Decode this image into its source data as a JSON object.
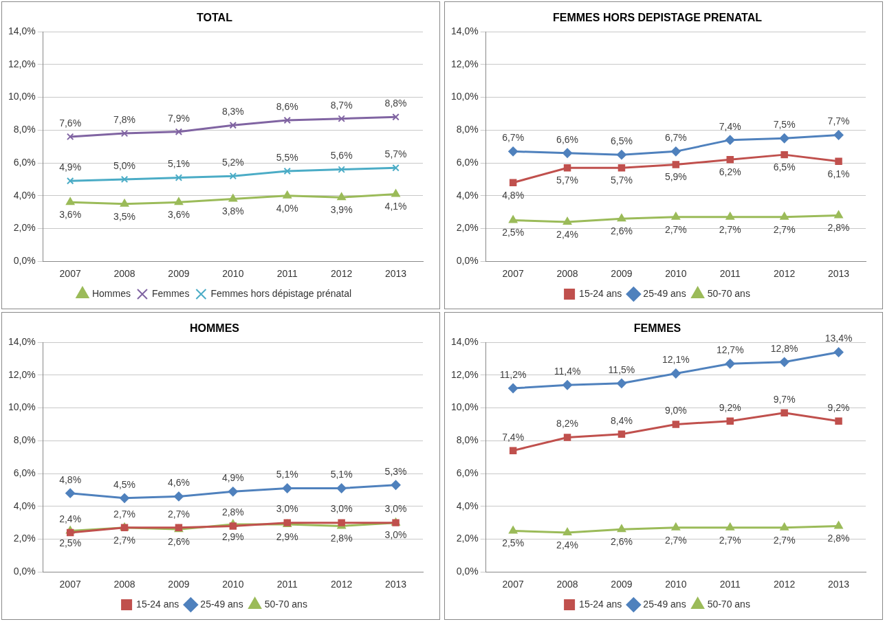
{
  "chart_data": [
    {
      "type": "line",
      "title": "TOTAL",
      "categories": [
        "2007",
        "2008",
        "2009",
        "2010",
        "2011",
        "2012",
        "2013"
      ],
      "ylim": [
        0,
        14
      ],
      "yticks": [
        {
          "value": 0,
          "label": "0,0%"
        },
        {
          "value": 2,
          "label": "2,0%"
        },
        {
          "value": 4,
          "label": "4,0%"
        },
        {
          "value": 6,
          "label": "6,0%"
        },
        {
          "value": 8,
          "label": "8,0%"
        },
        {
          "value": 10,
          "label": "10,0%"
        },
        {
          "value": 12,
          "label": "12,0%"
        },
        {
          "value": 14,
          "label": "14,0%"
        }
      ],
      "grid": "y",
      "legend": "bottom",
      "series": [
        {
          "name": "Hommes",
          "color": "#9bbb59",
          "marker": "triangle",
          "values": [
            3.6,
            3.5,
            3.6,
            3.8,
            4.0,
            3.9,
            4.1
          ],
          "value_labels": [
            "3,6%",
            "3,5%",
            "3,6%",
            "3,8%",
            "4,0%",
            "3,9%",
            "4,1%"
          ]
        },
        {
          "name": "Femmes",
          "color": "#8064a2",
          "marker": "cross",
          "values": [
            7.6,
            7.8,
            7.9,
            8.3,
            8.6,
            8.7,
            8.8
          ],
          "value_labels": [
            "7,6%",
            "7,8%",
            "7,9%",
            "8,3%",
            "8,6%",
            "8,7%",
            "8,8%"
          ]
        },
        {
          "name": "Femmes hors dépistage prénatal",
          "color": "#4bacc6",
          "marker": "cross",
          "values": [
            4.9,
            5.0,
            5.1,
            5.2,
            5.5,
            5.6,
            5.7
          ],
          "value_labels": [
            "4,9%",
            "5,0%",
            "5,1%",
            "5,2%",
            "5,5%",
            "5,6%",
            "5,7%"
          ]
        }
      ]
    },
    {
      "type": "line",
      "title": "FEMMES HORS DEPISTAGE PRENATAL",
      "categories": [
        "2007",
        "2008",
        "2009",
        "2010",
        "2011",
        "2012",
        "2013"
      ],
      "ylim": [
        0,
        14
      ],
      "yticks": [
        {
          "value": 0,
          "label": "0,0%"
        },
        {
          "value": 2,
          "label": "2,0%"
        },
        {
          "value": 4,
          "label": "4,0%"
        },
        {
          "value": 6,
          "label": "6,0%"
        },
        {
          "value": 8,
          "label": "8,0%"
        },
        {
          "value": 10,
          "label": "10,0%"
        },
        {
          "value": 12,
          "label": "12,0%"
        },
        {
          "value": 14,
          "label": "14,0%"
        }
      ],
      "grid": "y",
      "legend": "bottom",
      "series": [
        {
          "name": "15-24 ans",
          "color": "#c0504d",
          "marker": "square",
          "values": [
            4.8,
            5.7,
            5.7,
            5.9,
            6.2,
            6.5,
            6.1
          ],
          "value_labels": [
            "4,8%",
            "5,7%",
            "5,7%",
            "5,9%",
            "6,2%",
            "6,5%",
            "6,1%"
          ]
        },
        {
          "name": "25-49 ans",
          "color": "#4f81bd",
          "marker": "diamond",
          "values": [
            6.7,
            6.6,
            6.5,
            6.7,
            7.4,
            7.5,
            7.7
          ],
          "value_labels": [
            "6,7%",
            "6,6%",
            "6,5%",
            "6,7%",
            "7,4%",
            "7,5%",
            "7,7%"
          ]
        },
        {
          "name": "50-70 ans",
          "color": "#9bbb59",
          "marker": "triangle",
          "values": [
            2.5,
            2.4,
            2.6,
            2.7,
            2.7,
            2.7,
            2.8
          ],
          "value_labels": [
            "2,5%",
            "2,4%",
            "2,6%",
            "2,7%",
            "2,7%",
            "2,7%",
            "2,8%"
          ]
        }
      ]
    },
    {
      "type": "line",
      "title": "HOMMES",
      "categories": [
        "2007",
        "2008",
        "2009",
        "2010",
        "2011",
        "2012",
        "2013"
      ],
      "ylim": [
        0,
        14
      ],
      "yticks": [
        {
          "value": 0,
          "label": "0,0%"
        },
        {
          "value": 2,
          "label": "2,0%"
        },
        {
          "value": 4,
          "label": "4,0%"
        },
        {
          "value": 6,
          "label": "6,0%"
        },
        {
          "value": 8,
          "label": "8,0%"
        },
        {
          "value": 10,
          "label": "10,0%"
        },
        {
          "value": 12,
          "label": "12,0%"
        },
        {
          "value": 14,
          "label": "14,0%"
        }
      ],
      "grid": "y",
      "legend": "bottom",
      "series": [
        {
          "name": "15-24 ans",
          "color": "#c0504d",
          "marker": "square",
          "values": [
            2.4,
            2.7,
            2.7,
            2.8,
            3.0,
            3.0,
            3.0
          ],
          "value_labels": [
            "2,4%",
            "2,7%",
            "2,7%",
            "2,8%",
            "3,0%",
            "3,0%",
            "3,0%"
          ]
        },
        {
          "name": "25-49 ans",
          "color": "#4f81bd",
          "marker": "diamond",
          "values": [
            4.8,
            4.5,
            4.6,
            4.9,
            5.1,
            5.1,
            5.3
          ],
          "value_labels": [
            "4,8%",
            "4,5%",
            "4,6%",
            "4,9%",
            "5,1%",
            "5,1%",
            "5,3%"
          ]
        },
        {
          "name": "50-70 ans",
          "color": "#9bbb59",
          "marker": "triangle",
          "values": [
            2.5,
            2.7,
            2.6,
            2.9,
            2.9,
            2.8,
            3.0
          ],
          "value_labels": [
            "2,5%",
            "2,7%",
            "2,6%",
            "2,9%",
            "2,9%",
            "2,8%",
            "3,0%"
          ]
        }
      ]
    },
    {
      "type": "line",
      "title": "FEMMES",
      "categories": [
        "2007",
        "2008",
        "2009",
        "2010",
        "2011",
        "2012",
        "2013"
      ],
      "ylim": [
        0,
        14
      ],
      "yticks": [
        {
          "value": 0,
          "label": "0,0%"
        },
        {
          "value": 2,
          "label": "2,0%"
        },
        {
          "value": 4,
          "label": "4,0%"
        },
        {
          "value": 6,
          "label": "6,0%"
        },
        {
          "value": 8,
          "label": "8,0%"
        },
        {
          "value": 10,
          "label": "10,0%"
        },
        {
          "value": 12,
          "label": "12,0%"
        },
        {
          "value": 14,
          "label": "14,0%"
        }
      ],
      "grid": "y",
      "legend": "bottom",
      "series": [
        {
          "name": "15-24 ans",
          "color": "#c0504d",
          "marker": "square",
          "values": [
            7.4,
            8.2,
            8.4,
            9.0,
            9.2,
            9.7,
            9.2
          ],
          "value_labels": [
            "7,4%",
            "8,2%",
            "8,4%",
            "9,0%",
            "9,2%",
            "9,7%",
            "9,2%"
          ]
        },
        {
          "name": "25-49 ans",
          "color": "#4f81bd",
          "marker": "diamond",
          "values": [
            11.2,
            11.4,
            11.5,
            12.1,
            12.7,
            12.8,
            13.4
          ],
          "value_labels": [
            "11,2%",
            "11,4%",
            "11,5%",
            "12,1%",
            "12,7%",
            "12,8%",
            "13,4%"
          ]
        },
        {
          "name": "50-70 ans",
          "color": "#9bbb59",
          "marker": "triangle",
          "values": [
            2.5,
            2.4,
            2.6,
            2.7,
            2.7,
            2.7,
            2.8
          ],
          "value_labels": [
            "2,5%",
            "2,4%",
            "2,6%",
            "2,7%",
            "2,7%",
            "2,7%",
            "2,8%"
          ]
        }
      ]
    }
  ]
}
